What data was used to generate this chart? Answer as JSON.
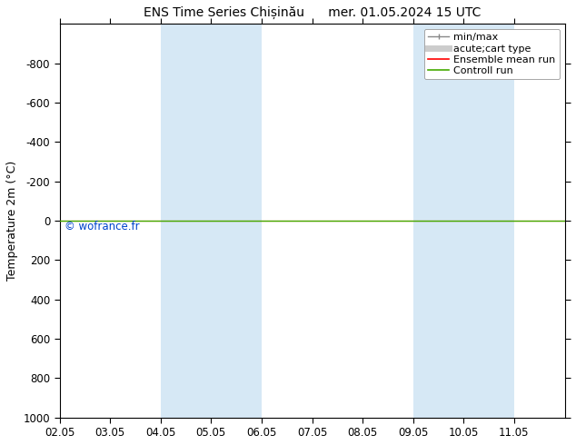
{
  "title": "ENS Time Series Chișinău      mer. 01.05.2024 15 UTC",
  "ylabel": "Temperature 2m (°C)",
  "watermark": "© wofrance.fr",
  "xlim": [
    0,
    10
  ],
  "ylim": [
    1000,
    -1000
  ],
  "yticks": [
    -800,
    -600,
    -400,
    -200,
    0,
    200,
    400,
    600,
    800,
    1000
  ],
  "xtick_positions": [
    0,
    1,
    2,
    3,
    4,
    5,
    6,
    7,
    8,
    9
  ],
  "xtick_labels": [
    "02.05",
    "03.05",
    "04.05",
    "05.05",
    "06.05",
    "07.05",
    "08.05",
    "09.05",
    "10.05",
    "11.05"
  ],
  "blue_bands": [
    [
      2,
      3
    ],
    [
      3,
      4
    ],
    [
      7,
      8
    ],
    [
      8,
      9
    ]
  ],
  "blue_color": "#d6e8f5",
  "green_line_y": 0,
  "green_line_color": "#44aa00",
  "red_line_color": "#ff0000",
  "legend_entries": [
    "min/max",
    "acute;cart type",
    "Ensemble mean run",
    "Controll run"
  ],
  "legend_line_colors": [
    "#888888",
    "#cccccc",
    "#ff0000",
    "#44aa00"
  ],
  "bg_color": "#ffffff",
  "title_fontsize": 10,
  "axis_fontsize": 9,
  "tick_fontsize": 8.5,
  "legend_fontsize": 8
}
